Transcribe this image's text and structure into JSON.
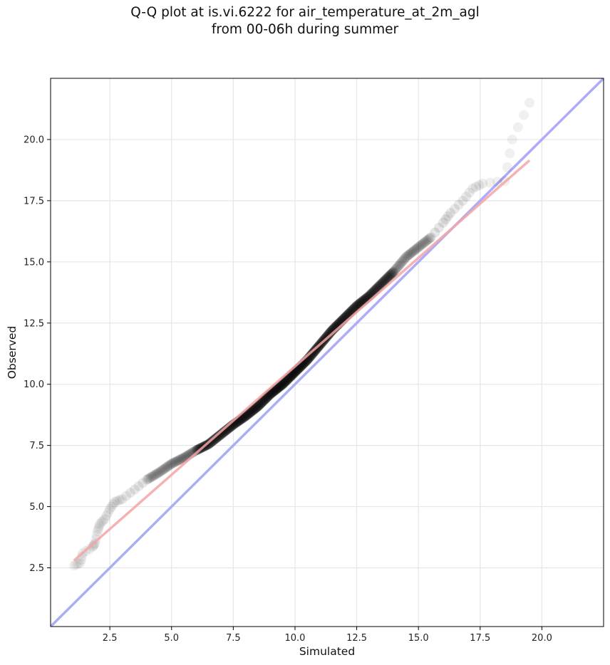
{
  "chart_data": {
    "type": "scatter",
    "title": "Q-Q plot at is.vi.6222 for air_temperature_at_2m_agl",
    "subtitle": "from 00-06h during summer",
    "xlabel": "Simulated",
    "ylabel": "Observed",
    "xlim": [
      0.1,
      22.5
    ],
    "ylim": [
      0.1,
      22.5
    ],
    "x_ticks": [
      2.5,
      5.0,
      7.5,
      10.0,
      12.5,
      15.0,
      17.5,
      20.0
    ],
    "y_ticks": [
      2.5,
      5.0,
      7.5,
      10.0,
      12.5,
      15.0,
      17.5,
      20.0
    ],
    "x_tick_labels": [
      "2.5",
      "5.0",
      "7.5",
      "10.0",
      "12.5",
      "15.0",
      "17.5",
      "20.0"
    ],
    "y_tick_labels": [
      "2.5",
      "5.0",
      "7.5",
      "10.0",
      "12.5",
      "15.0",
      "17.5",
      "20.0"
    ],
    "grid": true,
    "quantile_anchors": [
      [
        1.05,
        2.6
      ],
      [
        1.3,
        2.7
      ],
      [
        1.4,
        3.1
      ],
      [
        1.8,
        3.35
      ],
      [
        1.9,
        3.5
      ],
      [
        2.0,
        4.0
      ],
      [
        2.1,
        4.3
      ],
      [
        2.3,
        4.5
      ],
      [
        2.5,
        4.9
      ],
      [
        2.7,
        5.2
      ],
      [
        3.0,
        5.3
      ],
      [
        3.5,
        5.7
      ],
      [
        4.0,
        6.1
      ],
      [
        4.5,
        6.4
      ],
      [
        5.0,
        6.75
      ],
      [
        5.5,
        7.0
      ],
      [
        6.0,
        7.3
      ],
      [
        6.5,
        7.55
      ],
      [
        7.0,
        7.95
      ],
      [
        7.5,
        8.35
      ],
      [
        8.0,
        8.7
      ],
      [
        8.5,
        9.1
      ],
      [
        9.0,
        9.6
      ],
      [
        9.5,
        10.0
      ],
      [
        10.0,
        10.5
      ],
      [
        10.5,
        11.0
      ],
      [
        11.0,
        11.6
      ],
      [
        11.5,
        12.2
      ],
      [
        12.0,
        12.7
      ],
      [
        12.5,
        13.2
      ],
      [
        13.0,
        13.6
      ],
      [
        13.5,
        14.1
      ],
      [
        14.0,
        14.6
      ],
      [
        14.5,
        15.2
      ],
      [
        15.0,
        15.6
      ],
      [
        15.5,
        16.0
      ],
      [
        16.0,
        16.6
      ],
      [
        16.3,
        17.0
      ],
      [
        16.8,
        17.5
      ],
      [
        17.2,
        18.0
      ],
      [
        17.6,
        18.2
      ],
      [
        18.5,
        18.3
      ],
      [
        18.8,
        20.0
      ],
      [
        19.5,
        21.5
      ]
    ],
    "series": [
      {
        "kind": "points",
        "color": "#000000"
      },
      {
        "kind": "line",
        "color": "#f4a4a4",
        "x": [
          1.05,
          19.5
        ],
        "y": [
          2.8,
          19.15
        ]
      },
      {
        "kind": "line",
        "color": "#a8a8f8",
        "x": [
          0.1,
          22.5
        ],
        "y": [
          0.1,
          22.5
        ]
      }
    ]
  }
}
